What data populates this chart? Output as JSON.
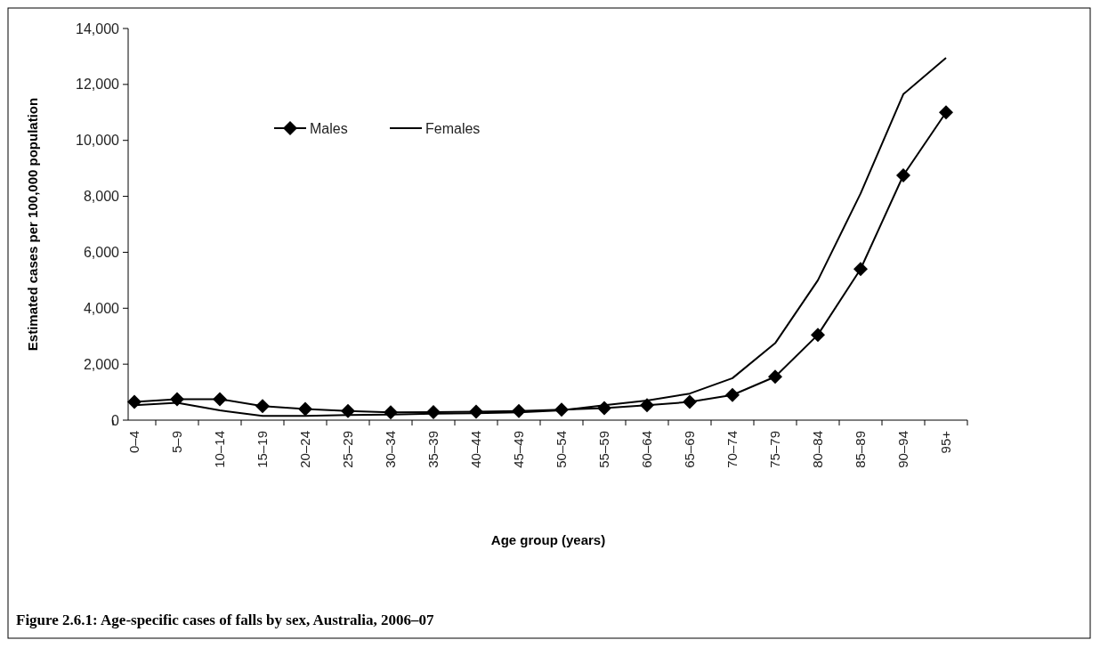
{
  "chart_data": {
    "type": "line",
    "title": "Figure 2.6.1: Age-specific cases of falls by sex, Australia, 2006–07",
    "xlabel": "Age group (years)",
    "ylabel": "Estimated cases per 100,000 population",
    "categories": [
      "0–4",
      "5–9",
      "10–14",
      "15–19",
      "20–24",
      "25–29",
      "30–34",
      "35–39",
      "40–44",
      "45–49",
      "50–54",
      "55–59",
      "60–64",
      "65–69",
      "70–74",
      "75–79",
      "80–84",
      "85–89",
      "90–94",
      "95+"
    ],
    "series": [
      {
        "name": "Males",
        "color": "#000000",
        "marker": "diamond",
        "values": [
          650,
          750,
          750,
          500,
          400,
          330,
          280,
          290,
          300,
          330,
          370,
          430,
          530,
          650,
          900,
          1550,
          3050,
          5400,
          8750,
          11000
        ]
      },
      {
        "name": "Females",
        "color": "#000000",
        "marker": "none",
        "values": [
          530,
          620,
          350,
          150,
          150,
          180,
          200,
          230,
          250,
          280,
          350,
          530,
          700,
          950,
          1500,
          2750,
          5000,
          8100,
          11650,
          12950
        ]
      }
    ],
    "ylim": [
      0,
      14000
    ],
    "yticks": [
      {
        "value": 0,
        "label": "0"
      },
      {
        "value": 2000,
        "label": "2,000"
      },
      {
        "value": 4000,
        "label": "4,000"
      },
      {
        "value": 6000,
        "label": "6,000"
      },
      {
        "value": 8000,
        "label": "8,000"
      },
      {
        "value": 10000,
        "label": "10,000"
      },
      {
        "value": 12000,
        "label": "12,000"
      },
      {
        "value": 14000,
        "label": "14,000"
      }
    ],
    "grid": false,
    "legend": "top",
    "line_style": "solid"
  }
}
